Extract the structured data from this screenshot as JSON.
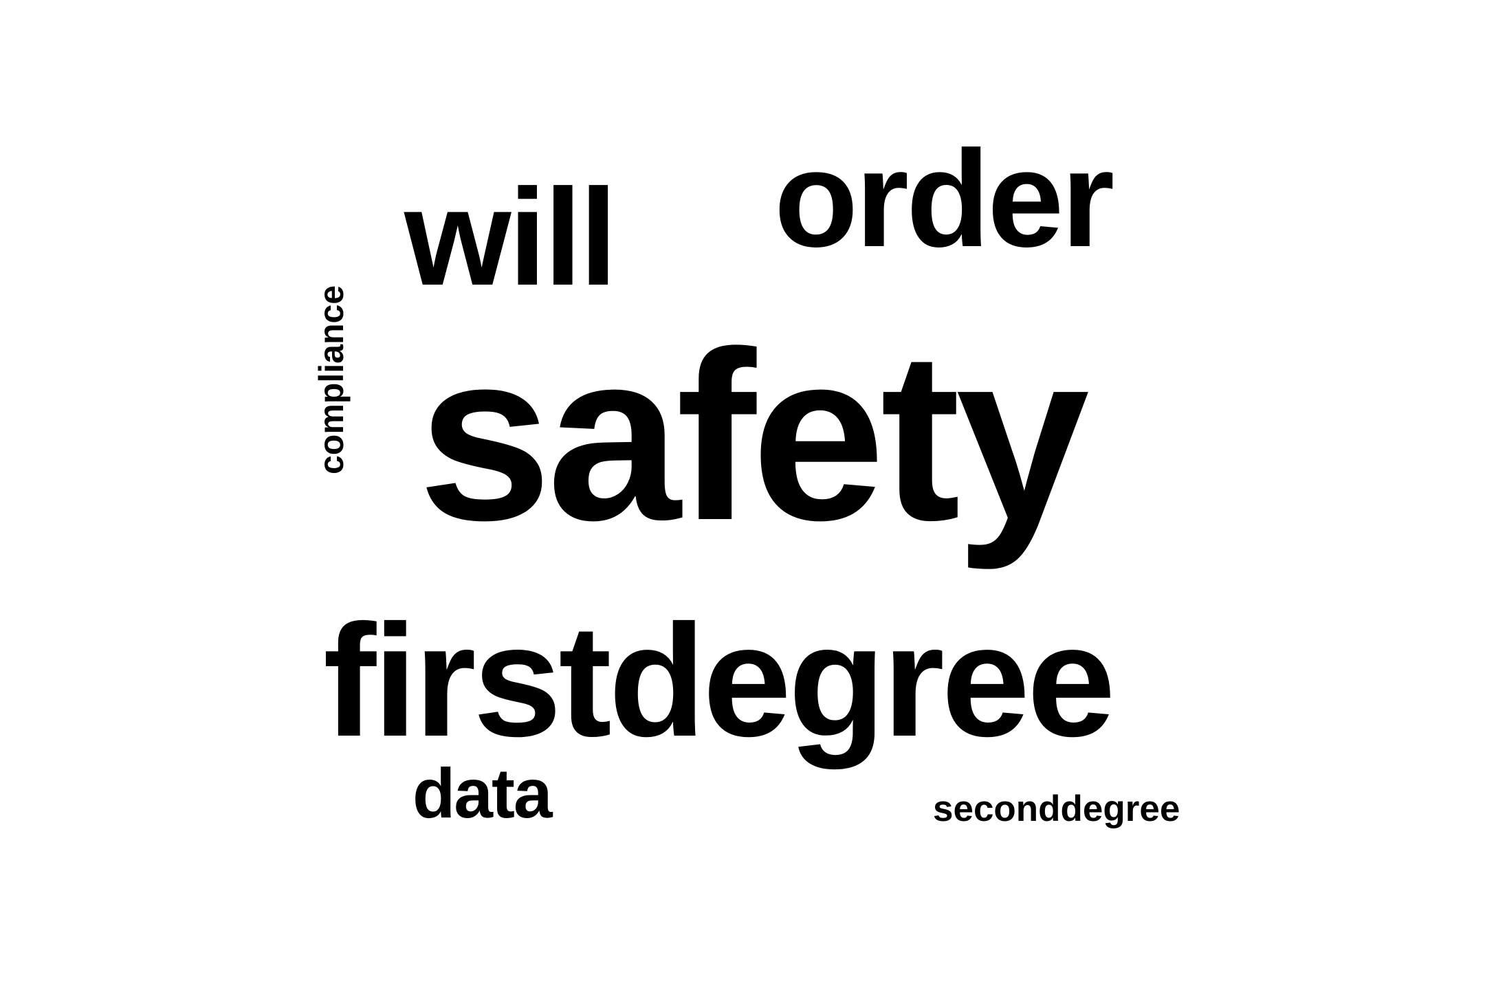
{
  "word_cloud": {
    "words": [
      {
        "text": "safety",
        "rank": 1
      },
      {
        "text": "firstdegree",
        "rank": 2
      },
      {
        "text": "order",
        "rank": 3
      },
      {
        "text": "will",
        "rank": 4
      },
      {
        "text": "data",
        "rank": 5
      },
      {
        "text": "seconddegree",
        "rank": 6
      },
      {
        "text": "compliance",
        "rank": 7
      }
    ],
    "text_color": "#000000",
    "background_color": "#ffffff"
  }
}
